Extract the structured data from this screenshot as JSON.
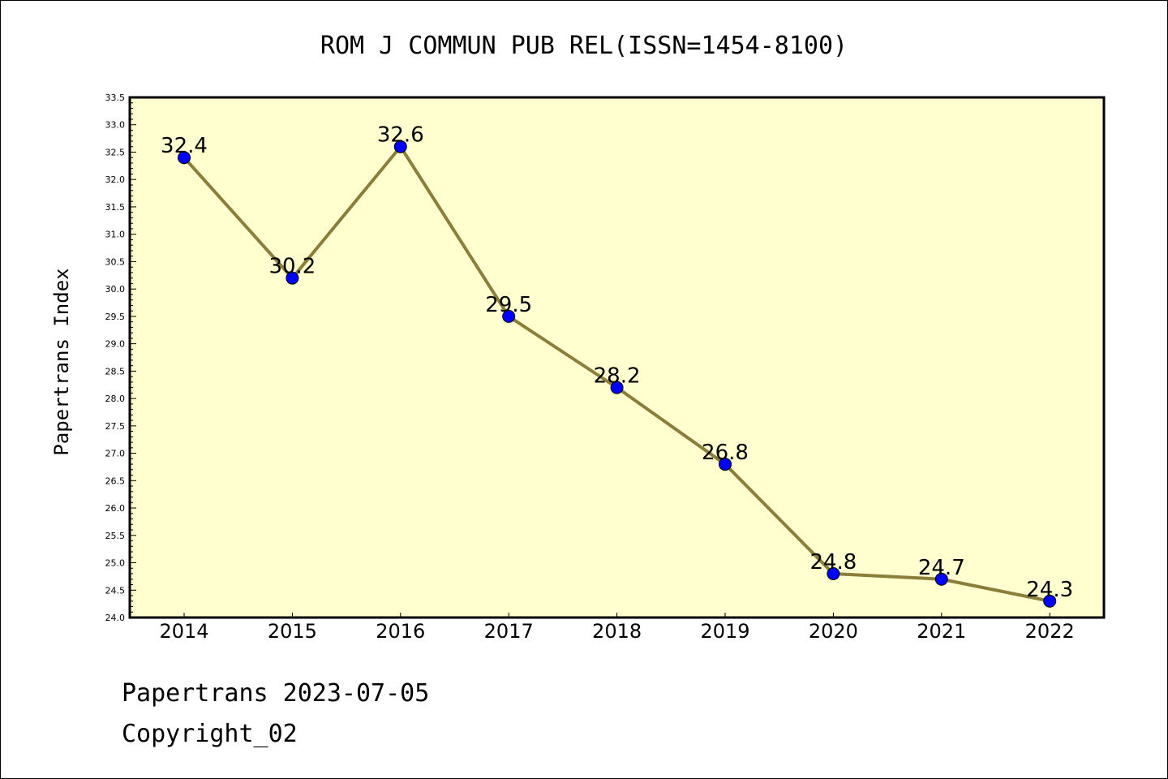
{
  "colors": {
    "plot_background": "#ffffd0",
    "line": "#8b7d3a",
    "marker": "#0000ff",
    "frame": "#000000"
  },
  "chart_data": {
    "type": "line",
    "title": "ROM J COMMUN PUB REL(ISSN=1454-8100)",
    "xlabel": "",
    "ylabel": "Papertrans Index",
    "categories": [
      "2014",
      "2015",
      "2016",
      "2017",
      "2018",
      "2019",
      "2020",
      "2021",
      "2022"
    ],
    "series": [
      {
        "values": [
          32.4,
          30.2,
          32.6,
          29.5,
          28.2,
          26.8,
          24.8,
          24.7,
          24.3
        ]
      }
    ],
    "data_labels": [
      "32.4",
      "30.2",
      "32.6",
      "29.5",
      "28.2",
      "26.8",
      "24.8",
      "24.7",
      "24.3"
    ],
    "ylim": [
      24.0,
      33.5
    ],
    "yticks": [
      "24.0",
      "24.5",
      "25.0",
      "25.5",
      "26.0",
      "26.5",
      "27.0",
      "27.5",
      "28.0",
      "28.5",
      "29.0",
      "29.5",
      "30.0",
      "30.5",
      "31.0",
      "31.5",
      "32.0",
      "32.5",
      "33.0",
      "33.5"
    ],
    "grid": false,
    "legend": "none"
  },
  "footer": {
    "line1": "Papertrans 2023-07-05",
    "line2": "Copyright_02"
  }
}
